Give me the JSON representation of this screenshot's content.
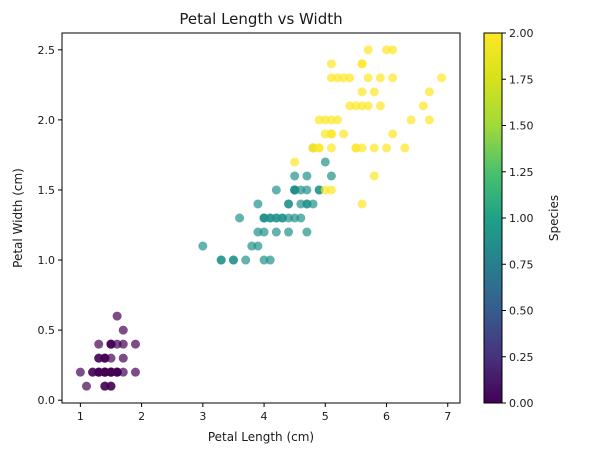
{
  "chart_data": {
    "type": "scatter",
    "title": "Petal Length vs Width",
    "xlabel": "Petal Length (cm)",
    "ylabel": "Petal Width (cm)",
    "xlim": [
      0.7,
      7.2
    ],
    "ylim": [
      -0.02,
      2.62
    ],
    "xticks": [
      1,
      2,
      3,
      4,
      5,
      6,
      7
    ],
    "yticks": [
      0.0,
      0.5,
      1.0,
      1.5,
      2.0,
      2.5
    ],
    "grid": false,
    "colormap": "viridis",
    "marker_alpha": 0.7,
    "colorbar": {
      "label": "Species",
      "range": [
        0.0,
        2.0
      ],
      "ticks": [
        0.0,
        0.25,
        0.5,
        0.75,
        1.0,
        1.25,
        1.5,
        1.75,
        2.0
      ],
      "tick_labels": [
        "0.00",
        "0.25",
        "0.50",
        "0.75",
        "1.00",
        "1.25",
        "1.50",
        "1.75",
        "2.00"
      ]
    },
    "series": [
      {
        "species_value": 0,
        "color": "#440154",
        "x": [
          1.4,
          1.4,
          1.3,
          1.5,
          1.4,
          1.7,
          1.4,
          1.5,
          1.4,
          1.5,
          1.5,
          1.6,
          1.4,
          1.1,
          1.2,
          1.5,
          1.3,
          1.4,
          1.7,
          1.5,
          1.7,
          1.5,
          1.0,
          1.7,
          1.9,
          1.6,
          1.6,
          1.5,
          1.4,
          1.6,
          1.6,
          1.5,
          1.5,
          1.4,
          1.5,
          1.2,
          1.3,
          1.4,
          1.3,
          1.5,
          1.3,
          1.3,
          1.3,
          1.6,
          1.9,
          1.4,
          1.6,
          1.4,
          1.5,
          1.4
        ],
        "y": [
          0.2,
          0.2,
          0.2,
          0.2,
          0.2,
          0.4,
          0.3,
          0.2,
          0.2,
          0.1,
          0.2,
          0.2,
          0.1,
          0.1,
          0.2,
          0.4,
          0.4,
          0.3,
          0.3,
          0.3,
          0.2,
          0.4,
          0.2,
          0.5,
          0.2,
          0.2,
          0.4,
          0.2,
          0.2,
          0.2,
          0.2,
          0.4,
          0.1,
          0.2,
          0.2,
          0.2,
          0.2,
          0.1,
          0.2,
          0.2,
          0.3,
          0.3,
          0.2,
          0.6,
          0.4,
          0.3,
          0.2,
          0.2,
          0.2,
          0.2
        ]
      },
      {
        "species_value": 1,
        "color": "#21918c",
        "x": [
          4.7,
          4.5,
          4.9,
          4.0,
          4.6,
          4.5,
          4.7,
          3.3,
          4.6,
          3.9,
          3.5,
          4.2,
          4.0,
          4.7,
          3.6,
          4.4,
          4.5,
          4.1,
          4.5,
          3.9,
          4.8,
          4.0,
          4.9,
          4.7,
          4.3,
          4.4,
          4.8,
          5.0,
          4.5,
          3.5,
          3.8,
          3.7,
          3.9,
          5.1,
          4.5,
          4.5,
          4.7,
          4.4,
          4.1,
          4.0,
          4.4,
          4.6,
          4.0,
          3.3,
          4.2,
          4.2,
          4.2,
          4.3,
          3.0,
          4.1
        ],
        "y": [
          1.4,
          1.5,
          1.5,
          1.3,
          1.5,
          1.3,
          1.6,
          1.0,
          1.3,
          1.4,
          1.0,
          1.5,
          1.0,
          1.4,
          1.3,
          1.4,
          1.5,
          1.0,
          1.5,
          1.1,
          1.8,
          1.3,
          1.5,
          1.2,
          1.3,
          1.4,
          1.4,
          1.7,
          1.5,
          1.0,
          1.1,
          1.0,
          1.2,
          1.6,
          1.5,
          1.6,
          1.5,
          1.3,
          1.3,
          1.3,
          1.2,
          1.4,
          1.2,
          1.0,
          1.3,
          1.2,
          1.3,
          1.3,
          1.1,
          1.3
        ]
      },
      {
        "species_value": 2,
        "color": "#fde725",
        "x": [
          6.0,
          5.1,
          5.9,
          5.6,
          5.8,
          6.6,
          4.5,
          6.3,
          5.8,
          6.1,
          5.1,
          5.3,
          5.5,
          5.0,
          5.1,
          5.3,
          5.5,
          6.7,
          6.9,
          5.0,
          5.7,
          4.9,
          6.7,
          4.9,
          5.7,
          6.0,
          4.8,
          4.9,
          5.6,
          5.8,
          6.1,
          6.4,
          5.6,
          5.1,
          5.6,
          6.1,
          5.6,
          5.5,
          4.8,
          5.4,
          5.6,
          5.1,
          5.1,
          5.9,
          5.7,
          5.2,
          5.0,
          5.2,
          5.4,
          5.1
        ],
        "y": [
          2.5,
          1.9,
          2.1,
          1.8,
          2.2,
          2.1,
          1.7,
          1.8,
          1.8,
          2.5,
          2.0,
          1.9,
          2.1,
          2.0,
          2.4,
          2.3,
          1.8,
          2.2,
          2.3,
          1.5,
          2.3,
          2.0,
          2.0,
          1.8,
          2.1,
          1.8,
          1.8,
          1.8,
          2.1,
          1.6,
          1.9,
          2.0,
          2.2,
          1.5,
          1.4,
          2.3,
          2.4,
          1.8,
          1.8,
          2.1,
          2.4,
          2.3,
          1.9,
          2.3,
          2.5,
          2.3,
          1.9,
          2.0,
          2.3,
          1.8
        ]
      }
    ]
  }
}
